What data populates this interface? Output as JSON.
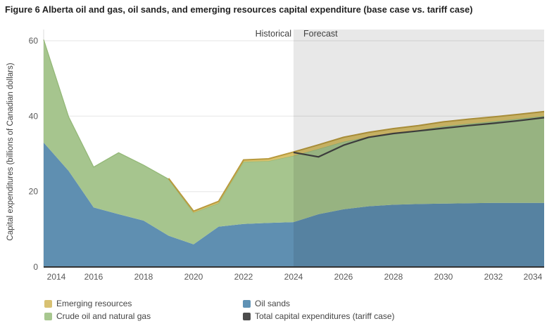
{
  "figure_title": "Figure 6 Alberta oil and gas, oil sands, and emerging resources capital expenditure (base case vs. tariff case)",
  "chart": {
    "y_axis_title": "Capital expenditures (billions of Canadian dollars)",
    "historical_label": "Historical",
    "forecast_label": "Forecast",
    "colors": {
      "oil_sands": "#5f8fb1",
      "crude": "#a6c58e",
      "crude_edge": "#93b877",
      "emerging_fill": "#d9c26c",
      "emerging_edge": "#b89a3e",
      "tariff_line": "#424242",
      "grid": "#e6e6e6",
      "axis_line": "#333333",
      "y_axis_line": "#dcdcdc",
      "tick_text": "#595959",
      "band_label_text": "#404040",
      "forecast_overlay_opacity": 0.09
    }
  },
  "chart_data": {
    "type": "area",
    "stacked": true,
    "title": "Figure 6 Alberta oil and gas, oil sands, and emerging resources capital expenditure (base case vs. tariff case)",
    "xlabel": "",
    "ylabel": "Capital expenditures (billions of Canadian dollars)",
    "x": [
      2014,
      2015,
      2016,
      2017,
      2018,
      2019,
      2020,
      2021,
      2022,
      2023,
      2024,
      2025,
      2026,
      2027,
      2028,
      2029,
      2030,
      2031,
      2032,
      2033,
      2034
    ],
    "x_tick_years": [
      2014,
      2016,
      2018,
      2020,
      2022,
      2024,
      2026,
      2028,
      2030,
      2032,
      2034
    ],
    "y_ticks": [
      0,
      20,
      40,
      60
    ],
    "ylim": [
      0,
      63
    ],
    "grid": true,
    "legend_position": "bottom",
    "forecast_start": 2024,
    "series": [
      {
        "name": "Oil sands",
        "type": "area",
        "values": [
          33.0,
          25.5,
          15.8,
          14.0,
          12.3,
          8.3,
          6.0,
          10.7,
          11.4,
          11.7,
          11.9,
          14.0,
          15.3,
          16.1,
          16.5,
          16.7,
          16.8,
          16.9,
          17.0,
          17.0,
          17.0
        ]
      },
      {
        "name": "Crude oil and natural gas",
        "type": "area",
        "values": [
          27.3,
          14.3,
          10.7,
          16.3,
          14.7,
          15.0,
          8.4,
          6.2,
          16.5,
          16.4,
          17.6,
          17.3,
          17.9,
          18.4,
          19.0,
          19.6,
          20.5,
          21.1,
          21.6,
          22.3,
          23.0
        ]
      },
      {
        "name": "Emerging resources",
        "type": "area",
        "values": [
          null,
          null,
          null,
          null,
          null,
          0.2,
          0.4,
          0.5,
          0.5,
          0.6,
          1.0,
          1.1,
          1.2,
          1.2,
          1.2,
          1.2,
          1.2,
          1.2,
          1.2,
          1.2,
          1.2
        ]
      },
      {
        "name": "Total capital expenditures (tariff case)",
        "type": "line",
        "x": [
          2024,
          2025,
          2026,
          2027,
          2028,
          2029,
          2030,
          2031,
          2032,
          2033,
          2034
        ],
        "values": [
          30.4,
          29.2,
          32.3,
          34.4,
          35.4,
          36.1,
          36.8,
          37.5,
          38.1,
          38.8,
          39.6
        ]
      }
    ]
  },
  "legend": {
    "items": [
      {
        "label": "Emerging resources",
        "color": "#d8c172"
      },
      {
        "label": "Oil sands",
        "color": "#5f92b5"
      },
      {
        "label": "Crude oil and natural gas",
        "color": "#a7c78f"
      },
      {
        "label": "Total capital expenditures (tariff case)",
        "color": "#4c4c4c"
      }
    ]
  }
}
